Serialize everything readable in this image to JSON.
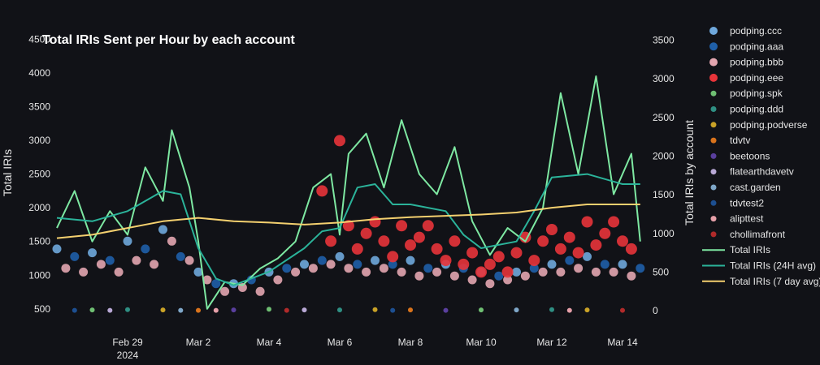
{
  "chart_data": {
    "type": "line",
    "title": "Total IRIs Sent per Hour by each account",
    "ylabel": "Total IRIs",
    "y2label": "Total IRIs by account",
    "ylim": [
      450,
      4600
    ],
    "y2lim": [
      -20,
      3600
    ],
    "yticks": [
      500,
      1000,
      1500,
      2000,
      2500,
      3000,
      3500,
      4000,
      4500
    ],
    "y2ticks": [
      0,
      500,
      1000,
      1500,
      2000,
      2500,
      3000,
      3500
    ],
    "xlim": [
      "2024-02-27T00:00",
      "2024-03-14T16:00"
    ],
    "xticks": [
      {
        "date": "2024-02-29T00:00",
        "label": "Feb 29",
        "sub": "2024"
      },
      {
        "date": "2024-03-02T00:00",
        "label": "Mar 2"
      },
      {
        "date": "2024-03-04T00:00",
        "label": "Mar 4"
      },
      {
        "date": "2024-03-06T00:00",
        "label": "Mar 6"
      },
      {
        "date": "2024-03-08T00:00",
        "label": "Mar 8"
      },
      {
        "date": "2024-03-10T00:00",
        "label": "Mar 10"
      },
      {
        "date": "2024-03-12T00:00",
        "label": "Mar 12"
      },
      {
        "date": "2024-03-14T00:00",
        "label": "Mar 14"
      }
    ],
    "grid": false,
    "legend_position": "right",
    "series": [
      {
        "name": "Total IRIs",
        "type": "line",
        "axis": "y",
        "color": "#7ee8a2",
        "points": [
          [
            "2024-02-27T00:00",
            1700
          ],
          [
            "2024-02-27T12:00",
            2250
          ],
          [
            "2024-02-28T00:00",
            1500
          ],
          [
            "2024-02-28T12:00",
            1950
          ],
          [
            "2024-02-29T00:00",
            1600
          ],
          [
            "2024-02-29T12:00",
            2600
          ],
          [
            "2024-03-01T00:00",
            2100
          ],
          [
            "2024-03-01T06:00",
            3150
          ],
          [
            "2024-03-01T18:00",
            2300
          ],
          [
            "2024-03-02T00:00",
            1500
          ],
          [
            "2024-03-02T06:00",
            500
          ],
          [
            "2024-03-02T18:00",
            900
          ],
          [
            "2024-03-03T06:00",
            850
          ],
          [
            "2024-03-03T18:00",
            1100
          ],
          [
            "2024-03-04T06:00",
            1250
          ],
          [
            "2024-03-04T18:00",
            1500
          ],
          [
            "2024-03-05T06:00",
            2300
          ],
          [
            "2024-03-05T18:00",
            2500
          ],
          [
            "2024-03-06T00:00",
            1600
          ],
          [
            "2024-03-06T06:00",
            2800
          ],
          [
            "2024-03-06T18:00",
            3100
          ],
          [
            "2024-03-07T06:00",
            2300
          ],
          [
            "2024-03-07T18:00",
            3300
          ],
          [
            "2024-03-08T06:00",
            2500
          ],
          [
            "2024-03-08T18:00",
            2200
          ],
          [
            "2024-03-09T06:00",
            2900
          ],
          [
            "2024-03-09T18:00",
            1800
          ],
          [
            "2024-03-10T06:00",
            1300
          ],
          [
            "2024-03-10T18:00",
            1700
          ],
          [
            "2024-03-11T06:00",
            1500
          ],
          [
            "2024-03-11T18:00",
            2000
          ],
          [
            "2024-03-12T06:00",
            3700
          ],
          [
            "2024-03-12T18:00",
            2500
          ],
          [
            "2024-03-13T06:00",
            3950
          ],
          [
            "2024-03-13T18:00",
            2200
          ],
          [
            "2024-03-14T06:00",
            2800
          ],
          [
            "2024-03-14T12:00",
            1500
          ]
        ]
      },
      {
        "name": "Total IRIs (24H avg)",
        "type": "line",
        "axis": "y",
        "color": "#2bb39a",
        "points": [
          [
            "2024-02-27T00:00",
            1850
          ],
          [
            "2024-02-28T00:00",
            1800
          ],
          [
            "2024-02-29T00:00",
            1950
          ],
          [
            "2024-03-01T00:00",
            2250
          ],
          [
            "2024-03-01T12:00",
            2200
          ],
          [
            "2024-03-02T00:00",
            1400
          ],
          [
            "2024-03-02T12:00",
            950
          ],
          [
            "2024-03-03T00:00",
            850
          ],
          [
            "2024-03-04T00:00",
            1050
          ],
          [
            "2024-03-05T00:00",
            1400
          ],
          [
            "2024-03-05T12:00",
            1650
          ],
          [
            "2024-03-06T00:00",
            1700
          ],
          [
            "2024-03-06T12:00",
            2300
          ],
          [
            "2024-03-07T00:00",
            2350
          ],
          [
            "2024-03-07T12:00",
            2050
          ],
          [
            "2024-03-08T00:00",
            2050
          ],
          [
            "2024-03-09T00:00",
            1950
          ],
          [
            "2024-03-09T12:00",
            1600
          ],
          [
            "2024-03-10T00:00",
            1400
          ],
          [
            "2024-03-11T00:00",
            1500
          ],
          [
            "2024-03-11T12:00",
            1950
          ],
          [
            "2024-03-12T00:00",
            2450
          ],
          [
            "2024-03-13T00:00",
            2500
          ],
          [
            "2024-03-14T00:00",
            2350
          ],
          [
            "2024-03-14T12:00",
            2350
          ]
        ]
      },
      {
        "name": "Total IRIs (7 day avg)",
        "type": "line",
        "axis": "y",
        "color": "#f4d06f",
        "points": [
          [
            "2024-02-27T00:00",
            1550
          ],
          [
            "2024-02-28T00:00",
            1600
          ],
          [
            "2024-02-29T00:00",
            1700
          ],
          [
            "2024-03-01T00:00",
            1800
          ],
          [
            "2024-03-02T00:00",
            1850
          ],
          [
            "2024-03-03T00:00",
            1800
          ],
          [
            "2024-03-04T00:00",
            1780
          ],
          [
            "2024-03-05T00:00",
            1750
          ],
          [
            "2024-03-06T00:00",
            1780
          ],
          [
            "2024-03-07T00:00",
            1830
          ],
          [
            "2024-03-08T00:00",
            1860
          ],
          [
            "2024-03-09T00:00",
            1880
          ],
          [
            "2024-03-10T00:00",
            1900
          ],
          [
            "2024-03-11T00:00",
            1930
          ],
          [
            "2024-03-12T00:00",
            2000
          ],
          [
            "2024-03-13T00:00",
            2050
          ],
          [
            "2024-03-14T00:00",
            2050
          ],
          [
            "2024-03-14T12:00",
            2050
          ]
        ]
      },
      {
        "name": "podping.ccc",
        "type": "scatter",
        "axis": "y2",
        "color": "#6fa8dc",
        "points": [
          [
            "2024-02-27T00:00",
            800
          ],
          [
            "2024-02-28T00:00",
            750
          ],
          [
            "2024-02-29T00:00",
            900
          ],
          [
            "2024-03-01T00:00",
            1050
          ],
          [
            "2024-03-02T00:00",
            500
          ],
          [
            "2024-03-03T00:00",
            350
          ],
          [
            "2024-03-04T00:00",
            500
          ],
          [
            "2024-03-05T00:00",
            600
          ],
          [
            "2024-03-06T00:00",
            700
          ],
          [
            "2024-03-07T00:00",
            650
          ],
          [
            "2024-03-08T00:00",
            650
          ],
          [
            "2024-03-09T00:00",
            600
          ],
          [
            "2024-03-10T00:00",
            500
          ],
          [
            "2024-03-11T00:00",
            500
          ],
          [
            "2024-03-12T00:00",
            600
          ],
          [
            "2024-03-13T00:00",
            700
          ],
          [
            "2024-03-14T00:00",
            600
          ]
        ]
      },
      {
        "name": "podping.aaa",
        "type": "scatter",
        "axis": "y2",
        "color": "#1f5fa8",
        "points": [
          [
            "2024-02-27T12:00",
            700
          ],
          [
            "2024-02-28T12:00",
            650
          ],
          [
            "2024-02-29T12:00",
            800
          ],
          [
            "2024-03-01T12:00",
            700
          ],
          [
            "2024-03-02T12:00",
            350
          ],
          [
            "2024-03-03T12:00",
            400
          ],
          [
            "2024-03-04T12:00",
            550
          ],
          [
            "2024-03-05T12:00",
            650
          ],
          [
            "2024-03-06T12:00",
            600
          ],
          [
            "2024-03-07T12:00",
            600
          ],
          [
            "2024-03-08T12:00",
            550
          ],
          [
            "2024-03-09T12:00",
            550
          ],
          [
            "2024-03-10T12:00",
            450
          ],
          [
            "2024-03-11T12:00",
            550
          ],
          [
            "2024-03-12T12:00",
            650
          ],
          [
            "2024-03-13T12:00",
            600
          ],
          [
            "2024-03-14T12:00",
            550
          ]
        ]
      },
      {
        "name": "podping.bbb",
        "type": "scatter",
        "axis": "y2",
        "color": "#e3a6b0",
        "points": [
          [
            "2024-02-27T06:00",
            550
          ],
          [
            "2024-02-27T18:00",
            500
          ],
          [
            "2024-02-28T06:00",
            600
          ],
          [
            "2024-02-28T18:00",
            500
          ],
          [
            "2024-02-29T06:00",
            650
          ],
          [
            "2024-02-29T18:00",
            600
          ],
          [
            "2024-03-01T06:00",
            900
          ],
          [
            "2024-03-01T18:00",
            650
          ],
          [
            "2024-03-02T06:00",
            400
          ],
          [
            "2024-03-02T18:00",
            250
          ],
          [
            "2024-03-03T06:00",
            300
          ],
          [
            "2024-03-03T18:00",
            250
          ],
          [
            "2024-03-04T06:00",
            400
          ],
          [
            "2024-03-04T18:00",
            500
          ],
          [
            "2024-03-05T06:00",
            550
          ],
          [
            "2024-03-05T18:00",
            600
          ],
          [
            "2024-03-06T06:00",
            550
          ],
          [
            "2024-03-06T18:00",
            500
          ],
          [
            "2024-03-07T06:00",
            550
          ],
          [
            "2024-03-07T18:00",
            500
          ],
          [
            "2024-03-08T06:00",
            450
          ],
          [
            "2024-03-08T18:00",
            500
          ],
          [
            "2024-03-09T06:00",
            450
          ],
          [
            "2024-03-09T18:00",
            400
          ],
          [
            "2024-03-10T06:00",
            350
          ],
          [
            "2024-03-10T18:00",
            400
          ],
          [
            "2024-03-11T06:00",
            450
          ],
          [
            "2024-03-11T18:00",
            500
          ],
          [
            "2024-03-12T06:00",
            500
          ],
          [
            "2024-03-12T18:00",
            550
          ],
          [
            "2024-03-13T06:00",
            500
          ],
          [
            "2024-03-13T18:00",
            500
          ],
          [
            "2024-03-14T06:00",
            450
          ]
        ]
      },
      {
        "name": "podping.eee",
        "type": "scatter",
        "axis": "y2",
        "color": "#e8343a",
        "points": [
          [
            "2024-03-05T12:00",
            1550
          ],
          [
            "2024-03-05T18:00",
            900
          ],
          [
            "2024-03-06T00:00",
            2200
          ],
          [
            "2024-03-06T06:00",
            1100
          ],
          [
            "2024-03-06T12:00",
            800
          ],
          [
            "2024-03-06T18:00",
            1000
          ],
          [
            "2024-03-07T00:00",
            1150
          ],
          [
            "2024-03-07T06:00",
            900
          ],
          [
            "2024-03-07T12:00",
            700
          ],
          [
            "2024-03-07T18:00",
            1100
          ],
          [
            "2024-03-08T00:00",
            850
          ],
          [
            "2024-03-08T06:00",
            950
          ],
          [
            "2024-03-08T12:00",
            1100
          ],
          [
            "2024-03-08T18:00",
            800
          ],
          [
            "2024-03-09T00:00",
            650
          ],
          [
            "2024-03-09T06:00",
            900
          ],
          [
            "2024-03-09T12:00",
            600
          ],
          [
            "2024-03-09T18:00",
            750
          ],
          [
            "2024-03-10T00:00",
            500
          ],
          [
            "2024-03-10T06:00",
            600
          ],
          [
            "2024-03-10T12:00",
            700
          ],
          [
            "2024-03-10T18:00",
            500
          ],
          [
            "2024-03-11T00:00",
            750
          ],
          [
            "2024-03-11T06:00",
            950
          ],
          [
            "2024-03-11T12:00",
            650
          ],
          [
            "2024-03-11T18:00",
            900
          ],
          [
            "2024-03-12T00:00",
            1050
          ],
          [
            "2024-03-12T06:00",
            800
          ],
          [
            "2024-03-12T12:00",
            950
          ],
          [
            "2024-03-12T18:00",
            750
          ],
          [
            "2024-03-13T00:00",
            1150
          ],
          [
            "2024-03-13T06:00",
            850
          ],
          [
            "2024-03-13T12:00",
            1000
          ],
          [
            "2024-03-13T18:00",
            1150
          ],
          [
            "2024-03-14T00:00",
            900
          ],
          [
            "2024-03-14T06:00",
            800
          ]
        ]
      },
      {
        "name": "podping.spk",
        "type": "baseline",
        "axis": "y2",
        "color": "#6fbf73",
        "points": [
          [
            "2024-02-28T00:00",
            10
          ],
          [
            "2024-03-04T00:00",
            20
          ],
          [
            "2024-03-10T00:00",
            10
          ]
        ]
      },
      {
        "name": "podping.ddd",
        "type": "baseline",
        "axis": "y2",
        "color": "#2f8f83",
        "points": [
          [
            "2024-02-29T00:00",
            15
          ],
          [
            "2024-03-06T00:00",
            10
          ],
          [
            "2024-03-12T00:00",
            15
          ]
        ]
      },
      {
        "name": "podping.podverse",
        "type": "baseline",
        "axis": "y2",
        "color": "#c9a227",
        "points": [
          [
            "2024-03-01T00:00",
            10
          ],
          [
            "2024-03-07T00:00",
            15
          ],
          [
            "2024-03-13T00:00",
            10
          ]
        ]
      },
      {
        "name": "tdvtv",
        "type": "baseline",
        "axis": "y2",
        "color": "#d9731c",
        "points": [
          [
            "2024-03-02T00:00",
            5
          ],
          [
            "2024-03-08T00:00",
            10
          ]
        ]
      },
      {
        "name": "beetoons",
        "type": "baseline",
        "axis": "y2",
        "color": "#5a3f9e",
        "points": [
          [
            "2024-03-03T00:00",
            10
          ],
          [
            "2024-03-09T00:00",
            5
          ]
        ]
      },
      {
        "name": "flatearthdavetv",
        "type": "baseline",
        "axis": "y2",
        "color": "#b9a9d6",
        "points": [
          [
            "2024-02-28T12:00",
            5
          ],
          [
            "2024-03-05T00:00",
            10
          ]
        ]
      },
      {
        "name": "cast.garden",
        "type": "baseline",
        "axis": "y2",
        "color": "#7fa7c9",
        "points": [
          [
            "2024-03-01T12:00",
            5
          ],
          [
            "2024-03-11T00:00",
            10
          ]
        ]
      },
      {
        "name": "tdvtest2",
        "type": "baseline",
        "axis": "y2",
        "color": "#1d4f91",
        "points": [
          [
            "2024-02-27T12:00",
            5
          ],
          [
            "2024-03-07T12:00",
            5
          ]
        ]
      },
      {
        "name": "alipttest",
        "type": "baseline",
        "axis": "y2",
        "color": "#e6a0a9",
        "points": [
          [
            "2024-03-02T12:00",
            5
          ],
          [
            "2024-03-12T12:00",
            5
          ]
        ]
      },
      {
        "name": "chollimafront",
        "type": "baseline",
        "axis": "y2",
        "color": "#b02a2a",
        "points": [
          [
            "2024-03-04T12:00",
            5
          ],
          [
            "2024-03-14T00:00",
            5
          ]
        ]
      }
    ]
  }
}
